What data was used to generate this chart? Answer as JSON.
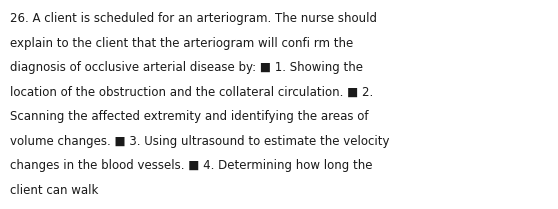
{
  "background_color": "#ffffff",
  "text_color": "#1a1a1a",
  "font_size": 8.5,
  "font_family": "DejaVu Sans",
  "figsize": [
    5.58,
    2.09
  ],
  "dpi": 100,
  "lines": [
    "26. A client is scheduled for an arteriogram. The nurse should",
    "explain to the client that the arteriogram will confi rm the",
    "diagnosis of occlusive arterial disease by: ■ 1. Showing the",
    "location of the obstruction and the collateral circulation. ■ 2.",
    "Scanning the affected extremity and identifying the areas of",
    "volume changes. ■ 3. Using ultrasound to estimate the velocity",
    "changes in the blood vessels. ■ 4. Determining how long the",
    "client can walk"
  ]
}
